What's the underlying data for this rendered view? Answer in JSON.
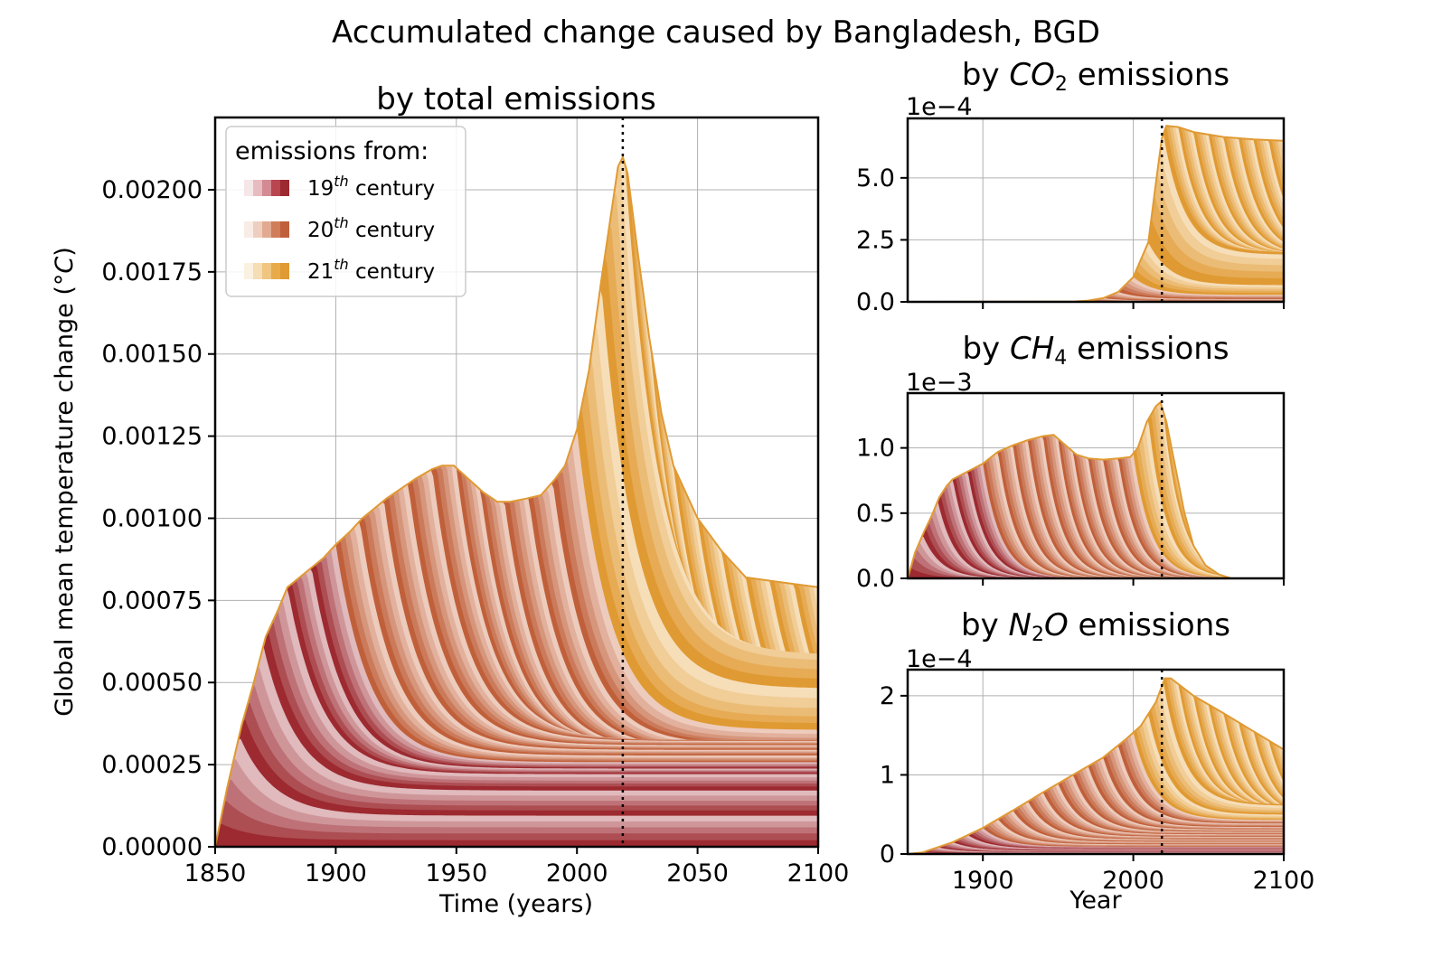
{
  "figure": {
    "suptitle": "Accumulated change caused by Bangladesh, BGD"
  },
  "legend": {
    "title": "emissions from:",
    "entries": [
      {
        "prefix": "19",
        "sup": "th",
        "suffix": " century",
        "colors": [
          "#f5e6e8",
          "#e6bcc0",
          "#d48a93",
          "#b8454f",
          "#9c2a30"
        ]
      },
      {
        "prefix": "20",
        "sup": "th",
        "suffix": " century",
        "colors": [
          "#f9ece6",
          "#eecfbf",
          "#e2aa91",
          "#d07e5a",
          "#c0603a"
        ]
      },
      {
        "prefix": "21",
        "sup": "th",
        "suffix": " century",
        "colors": [
          "#fbf1e0",
          "#f5ddb5",
          "#efc57f",
          "#e8ab4c",
          "#e09a33"
        ]
      }
    ]
  },
  "colors": {
    "c19_dark": "#9c2a30",
    "c19_light": "#f6e8ea",
    "c20_dark": "#c0603a",
    "c20_light": "#fbeee8",
    "c21_dark": "#e09a33",
    "c21_light": "#fdf3e3",
    "grid": "#b0b0b0",
    "present_line": "#000000"
  },
  "chart_data": [
    {
      "id": "total",
      "type": "area",
      "title": "by total emissions",
      "xlabel": "Time (years)",
      "ylabel": "Global mean temperature change (°C)",
      "xlim": [
        1850,
        2100
      ],
      "ylim": [
        0,
        0.00222
      ],
      "xticks": [
        1850,
        1900,
        1950,
        2000,
        2050,
        2100
      ],
      "xtick_labels": [
        "1850",
        "1900",
        "1950",
        "2000",
        "2050",
        "2100"
      ],
      "yticks": [
        0,
        0.00025,
        0.0005,
        0.00075,
        0.001,
        0.00125,
        0.0015,
        0.00175,
        0.002
      ],
      "ytick_labels": [
        "0.00000",
        "0.00025",
        "0.00050",
        "0.00075",
        "0.00100",
        "0.00125",
        "0.00150",
        "0.00175",
        "0.00200"
      ],
      "present_year": 2019,
      "grid": true,
      "legend_position": "upper-left",
      "envelope": [
        [
          1850,
          0
        ],
        [
          1855,
          0.00018
        ],
        [
          1861,
          0.00037
        ],
        [
          1866,
          0.0005
        ],
        [
          1871,
          0.00064
        ],
        [
          1876,
          0.00072
        ],
        [
          1880,
          0.00079
        ],
        [
          1885,
          0.00082
        ],
        [
          1890,
          0.00085
        ],
        [
          1895,
          0.00088
        ],
        [
          1900,
          0.00092
        ],
        [
          1906,
          0.00096
        ],
        [
          1911,
          0.001
        ],
        [
          1916,
          0.00103
        ],
        [
          1921,
          0.00106
        ],
        [
          1927,
          0.00109
        ],
        [
          1933,
          0.00112
        ],
        [
          1940,
          0.00115
        ],
        [
          1944,
          0.00116
        ],
        [
          1949,
          0.00116
        ],
        [
          1955,
          0.00112
        ],
        [
          1961,
          0.00108
        ],
        [
          1967,
          0.00105
        ],
        [
          1972,
          0.00105
        ],
        [
          1979,
          0.00106
        ],
        [
          1985,
          0.00107
        ],
        [
          1991,
          0.00112
        ],
        [
          1995,
          0.00116
        ],
        [
          2000,
          0.00127
        ],
        [
          2005,
          0.00145
        ],
        [
          2010,
          0.00172
        ],
        [
          2014,
          0.00192
        ],
        [
          2017,
          0.00207
        ],
        [
          2019,
          0.0021
        ],
        [
          2021,
          0.00205
        ],
        [
          2025,
          0.00182
        ],
        [
          2030,
          0.00155
        ],
        [
          2035,
          0.00132
        ],
        [
          2040,
          0.00116
        ],
        [
          2050,
          0.001
        ],
        [
          2060,
          0.0009
        ],
        [
          2070,
          0.00082
        ],
        [
          2080,
          0.00081
        ],
        [
          2090,
          0.0008
        ],
        [
          2100,
          0.00079
        ]
      ],
      "band_boundaries": [
        {
          "name": "19th century",
          "start": 1850,
          "end": 1900,
          "final": 2e-05
        },
        {
          "name": "20th century",
          "start": 1900,
          "end": 2000,
          "final": 0.00025
        },
        {
          "name": "21st century",
          "start": 2000,
          "end": 2100,
          "final": 0.00079
        }
      ],
      "internal_levels": [
        [
          2050,
          0.00049
        ],
        [
          2100,
          0.00045
        ]
      ]
    },
    {
      "id": "co2",
      "type": "area",
      "title_prefix": "by ",
      "title_species": "CO",
      "title_sub": "2",
      "title_suffix": " emissions",
      "offset_label": "1e−4",
      "xlim": [
        1850,
        2100
      ],
      "ylim": [
        0,
        7.4
      ],
      "yticks": [
        0,
        2.5,
        5.0
      ],
      "ytick_labels": [
        "0.0",
        "2.5",
        "5.0"
      ],
      "xticks": [
        1900,
        2000,
        2100
      ],
      "present_year": 2019,
      "grid": true,
      "envelope": [
        [
          1850,
          0
        ],
        [
          1960,
          0.01
        ],
        [
          1970,
          0.05
        ],
        [
          1980,
          0.15
        ],
        [
          1990,
          0.4
        ],
        [
          2000,
          1.0
        ],
        [
          2010,
          2.4
        ],
        [
          2015,
          4.8
        ],
        [
          2019,
          6.6
        ],
        [
          2022,
          7.1
        ],
        [
          2030,
          7.05
        ],
        [
          2040,
          6.85
        ],
        [
          2060,
          6.65
        ],
        [
          2080,
          6.55
        ],
        [
          2100,
          6.5
        ]
      ],
      "band_boundaries": [
        {
          "name": "19th century",
          "start": 1850,
          "end": 1900,
          "final": 0.05
        },
        {
          "name": "20th century",
          "start": 1900,
          "end": 2000,
          "final": 1.6
        },
        {
          "name": "21st century",
          "start": 2000,
          "end": 2100,
          "final": 6.5
        }
      ],
      "internal_levels": [
        [
          2030,
          3.7
        ],
        [
          2100,
          3.35
        ]
      ]
    },
    {
      "id": "ch4",
      "type": "area",
      "title_prefix": "by ",
      "title_species": "CH",
      "title_sub": "4",
      "title_suffix": " emissions",
      "offset_label": "1e−3",
      "xlim": [
        1850,
        2100
      ],
      "ylim": [
        0,
        1.42
      ],
      "yticks": [
        0,
        0.5,
        1.0
      ],
      "ytick_labels": [
        "0.0",
        "0.5",
        "1.0"
      ],
      "xticks": [
        1900,
        2000,
        2100
      ],
      "present_year": 2019,
      "grid": true,
      "envelope": [
        [
          1850,
          0
        ],
        [
          1855,
          0.2
        ],
        [
          1861,
          0.36
        ],
        [
          1866,
          0.48
        ],
        [
          1871,
          0.62
        ],
        [
          1876,
          0.71
        ],
        [
          1880,
          0.76
        ],
        [
          1890,
          0.82
        ],
        [
          1900,
          0.88
        ],
        [
          1910,
          0.97
        ],
        [
          1920,
          1.02
        ],
        [
          1930,
          1.06
        ],
        [
          1940,
          1.09
        ],
        [
          1947,
          1.1
        ],
        [
          1955,
          1.02
        ],
        [
          1962,
          0.95
        ],
        [
          1970,
          0.92
        ],
        [
          1980,
          0.91
        ],
        [
          1990,
          0.92
        ],
        [
          1998,
          0.93
        ],
        [
          2003,
          1.0
        ],
        [
          2009,
          1.2
        ],
        [
          2015,
          1.32
        ],
        [
          2018,
          1.35
        ],
        [
          2022,
          1.2
        ],
        [
          2028,
          0.85
        ],
        [
          2034,
          0.5
        ],
        [
          2040,
          0.25
        ],
        [
          2048,
          0.1
        ],
        [
          2057,
          0.03
        ],
        [
          2065,
          0.0
        ],
        [
          2100,
          0.0
        ]
      ],
      "band_boundaries": [
        {
          "name": "19th century",
          "start": 1850,
          "end": 1900,
          "final": 0.0
        },
        {
          "name": "20th century",
          "start": 1900,
          "end": 2000,
          "final": 0.0
        },
        {
          "name": "21st century",
          "start": 2000,
          "end": 2100,
          "final": 0.0
        }
      ],
      "internal_levels": []
    },
    {
      "id": "n2o",
      "type": "area",
      "title_prefix": "by ",
      "title_species": "N",
      "title_sub": "2",
      "title_species2": "O",
      "title_suffix": " emissions",
      "offset_label": "1e−4",
      "xlabel": "Year",
      "xlim": [
        1850,
        2100
      ],
      "ylim": [
        0,
        2.33
      ],
      "yticks": [
        0,
        1,
        2
      ],
      "ytick_labels": [
        "0",
        "1",
        "2"
      ],
      "xticks": [
        1900,
        2000,
        2100
      ],
      "xtick_labels": [
        "1900",
        "2000",
        "2100"
      ],
      "present_year": 2019,
      "grid": true,
      "envelope": [
        [
          1850,
          0
        ],
        [
          1860,
          0.02
        ],
        [
          1880,
          0.15
        ],
        [
          1900,
          0.33
        ],
        [
          1920,
          0.55
        ],
        [
          1940,
          0.78
        ],
        [
          1960,
          1.0
        ],
        [
          1980,
          1.22
        ],
        [
          1995,
          1.45
        ],
        [
          2005,
          1.62
        ],
        [
          2015,
          1.92
        ],
        [
          2021,
          2.22
        ],
        [
          2025,
          2.22
        ],
        [
          2040,
          2.0
        ],
        [
          2060,
          1.78
        ],
        [
          2080,
          1.55
        ],
        [
          2100,
          1.32
        ]
      ],
      "band_boundaries": [
        {
          "name": "19th century",
          "start": 1850,
          "end": 1900,
          "final": 0.05
        },
        {
          "name": "20th century",
          "start": 1900,
          "end": 2000,
          "final": 0.62
        },
        {
          "name": "21st century",
          "start": 2000,
          "end": 2100,
          "final": 1.32
        }
      ],
      "internal_levels": [
        [
          2020,
          1.96
        ],
        [
          2100,
          1.1
        ]
      ]
    }
  ]
}
